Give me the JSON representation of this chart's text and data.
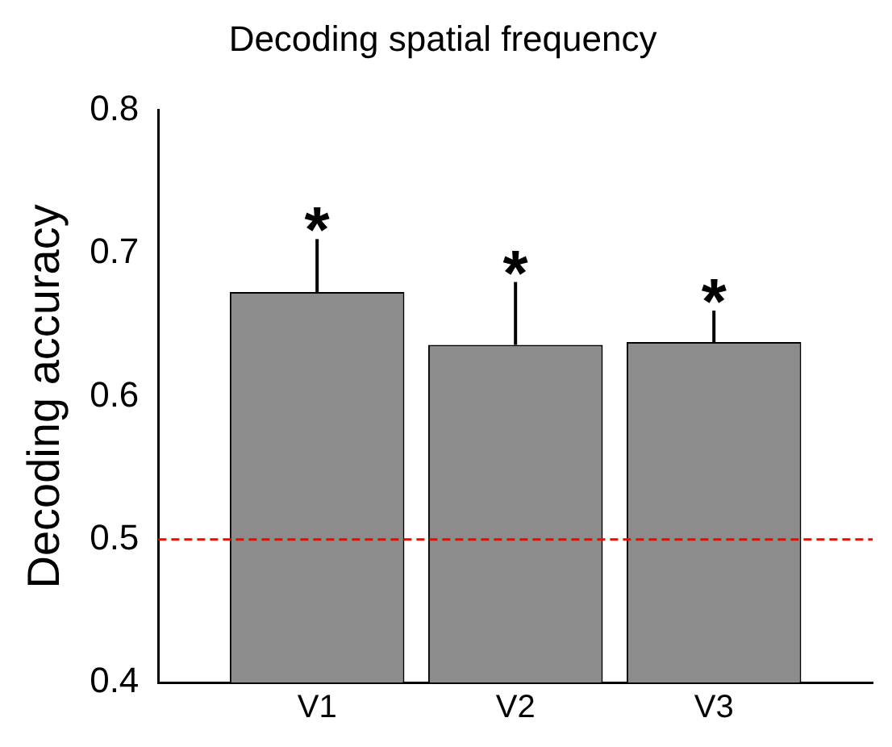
{
  "chart_data": {
    "type": "bar",
    "title": "Decoding spatial frequency",
    "ylabel": "Decoding accuracy",
    "categories": [
      "V1",
      "V2",
      "V3"
    ],
    "values": [
      0.673,
      0.636,
      0.638
    ],
    "errors": [
      [
        0.673,
        0.71
      ],
      [
        0.636,
        0.68
      ],
      [
        0.638,
        0.66
      ]
    ],
    "color": "#8c8c8c",
    "ylim": [
      0.4,
      0.8
    ],
    "yticks": [
      0.4,
      0.5,
      0.6,
      0.7,
      0.8
    ],
    "grid": false,
    "legend": false,
    "ref_lines": [
      {
        "axis": "y",
        "value": 0.5,
        "color": "#ff0000",
        "line_style": "dashed"
      }
    ],
    "annotations": [
      {
        "text": "*",
        "x": "V1",
        "y": 0.71
      },
      {
        "text": "*",
        "x": "V2",
        "y": 0.68
      },
      {
        "text": "*",
        "x": "V3",
        "y": 0.66
      }
    ]
  }
}
